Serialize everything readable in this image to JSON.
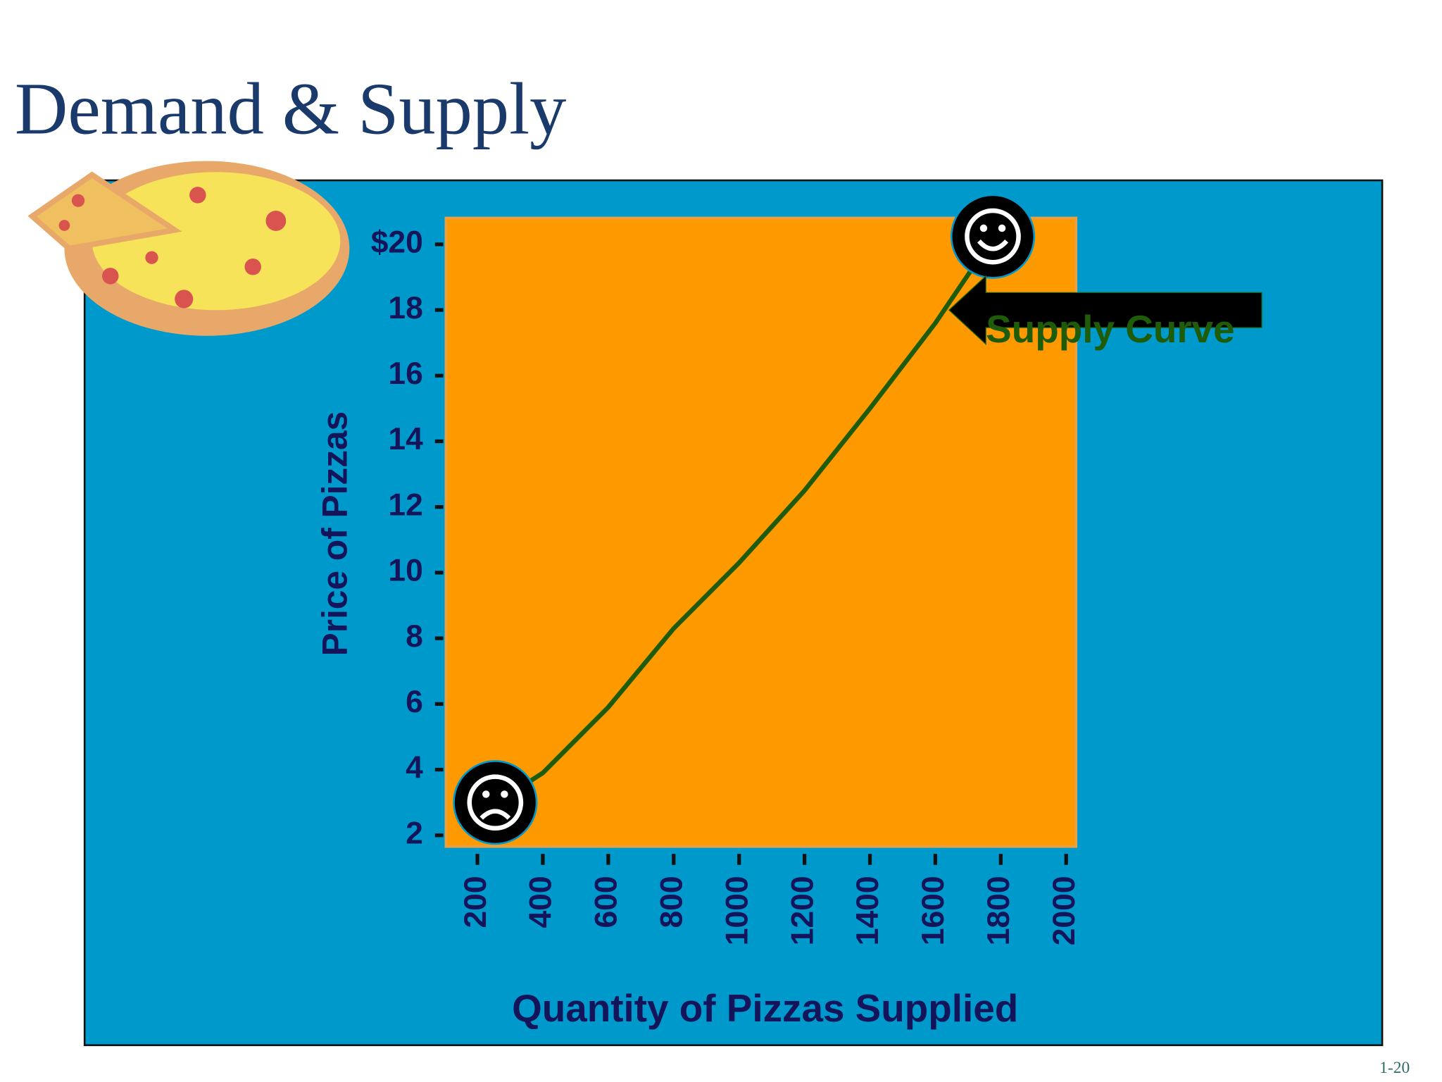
{
  "slide": {
    "title": "Demand & Supply",
    "page_number": "1-20"
  },
  "chart_data": {
    "type": "line",
    "y_label": "Price of Pizzas",
    "x_label": "Quantity of Pizzas Supplied",
    "annotation": "Supply Curve",
    "x": [
      260,
      400,
      600,
      800,
      1000,
      1200,
      1400,
      1600,
      1770
    ],
    "series": [
      {
        "name": "Supply Curve",
        "color": "#1f5c0a",
        "values": [
          3.0,
          3.9,
          5.9,
          8.3,
          10.3,
          12.5,
          15.0,
          17.6,
          20.1
        ]
      }
    ],
    "xlim": [
      104,
      2030
    ],
    "ylim": [
      1.66,
      20.8
    ],
    "xticks": [
      200,
      400,
      600,
      800,
      1000,
      1200,
      1400,
      1600,
      1800,
      2000
    ],
    "yticks": [
      2,
      4,
      6,
      8,
      10,
      12,
      14,
      16,
      18,
      {
        "value": 20,
        "label": "$20"
      }
    ],
    "grid": false
  }
}
